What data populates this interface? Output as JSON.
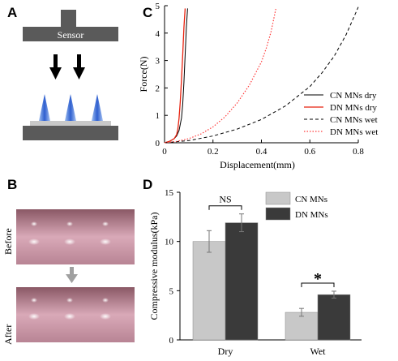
{
  "panels": {
    "a": {
      "letter": "A",
      "sensor_label": "Sensor"
    },
    "b": {
      "letter": "B",
      "before_label": "Before",
      "after_label": "After"
    },
    "c": {
      "letter": "C"
    },
    "d": {
      "letter": "D"
    }
  },
  "colors": {
    "cn_dry": "#000000",
    "dn_dry": "#e8220f",
    "cn_wet": "#000000",
    "dn_wet": "#ff3a3a",
    "cn_bar": "#c8c8c8",
    "dn_bar": "#3a3a3a",
    "sensor_gray": "#5a5a5a",
    "needle_blue": "#3a6fd8",
    "photo_pink": "#d7a3b4"
  },
  "chart_data": [
    {
      "type": "line",
      "xlabel": "Displacement(mm)",
      "ylabel": "Force(N)",
      "xlim": [
        0,
        0.8
      ],
      "ylim": [
        0,
        5
      ],
      "xticks": [
        "0",
        "0.2",
        "0.4",
        "0.6",
        "0.8"
      ],
      "yticks": [
        "0",
        "1",
        "2",
        "3",
        "4",
        "5"
      ],
      "grid": false,
      "legend_position": "bottom-right",
      "series": [
        {
          "name": "CN MNs dry",
          "style": "solid",
          "x": [
            0,
            0.02,
            0.04,
            0.05,
            0.06,
            0.07,
            0.075,
            0.08,
            0.085,
            0.09,
            0.095
          ],
          "y": [
            0,
            0.05,
            0.15,
            0.25,
            0.45,
            0.9,
            1.4,
            2.2,
            3.2,
            4.2,
            4.9
          ]
        },
        {
          "name": "DN MNs dry",
          "style": "solid",
          "x": [
            0,
            0.02,
            0.04,
            0.05,
            0.055,
            0.06,
            0.065,
            0.07,
            0.075,
            0.08,
            0.085
          ],
          "y": [
            0,
            0.05,
            0.15,
            0.3,
            0.5,
            0.9,
            1.5,
            2.3,
            3.2,
            4.2,
            4.9
          ]
        },
        {
          "name": "CN MNs wet",
          "style": "dashed",
          "x": [
            0,
            0.1,
            0.2,
            0.3,
            0.4,
            0.5,
            0.6,
            0.65,
            0.7,
            0.75,
            0.8
          ],
          "y": [
            0,
            0.08,
            0.25,
            0.5,
            0.85,
            1.35,
            2.05,
            2.55,
            3.15,
            3.95,
            4.95
          ]
        },
        {
          "name": "DN MNs wet",
          "style": "dotted",
          "x": [
            0,
            0.05,
            0.1,
            0.15,
            0.2,
            0.25,
            0.3,
            0.35,
            0.4,
            0.42,
            0.44,
            0.46
          ],
          "y": [
            0,
            0.05,
            0.15,
            0.32,
            0.58,
            0.95,
            1.45,
            2.1,
            2.95,
            3.45,
            4.05,
            4.9
          ]
        }
      ]
    },
    {
      "type": "bar",
      "ylabel": "Compressive modulus(kPa)",
      "categories": [
        "Dry",
        "Wet"
      ],
      "ylim": [
        0,
        15
      ],
      "yticks": [
        "0",
        "5",
        "10",
        "15"
      ],
      "legend_position": "top-right",
      "series": [
        {
          "name": "CN MNs",
          "values": [
            10.0,
            2.8
          ],
          "errors": [
            1.1,
            0.4
          ]
        },
        {
          "name": "DN MNs",
          "values": [
            11.9,
            4.6
          ],
          "errors": [
            0.9,
            0.35
          ]
        }
      ],
      "annotations": [
        {
          "category": "Dry",
          "text": "NS"
        },
        {
          "category": "Wet",
          "text": "*"
        }
      ]
    }
  ]
}
